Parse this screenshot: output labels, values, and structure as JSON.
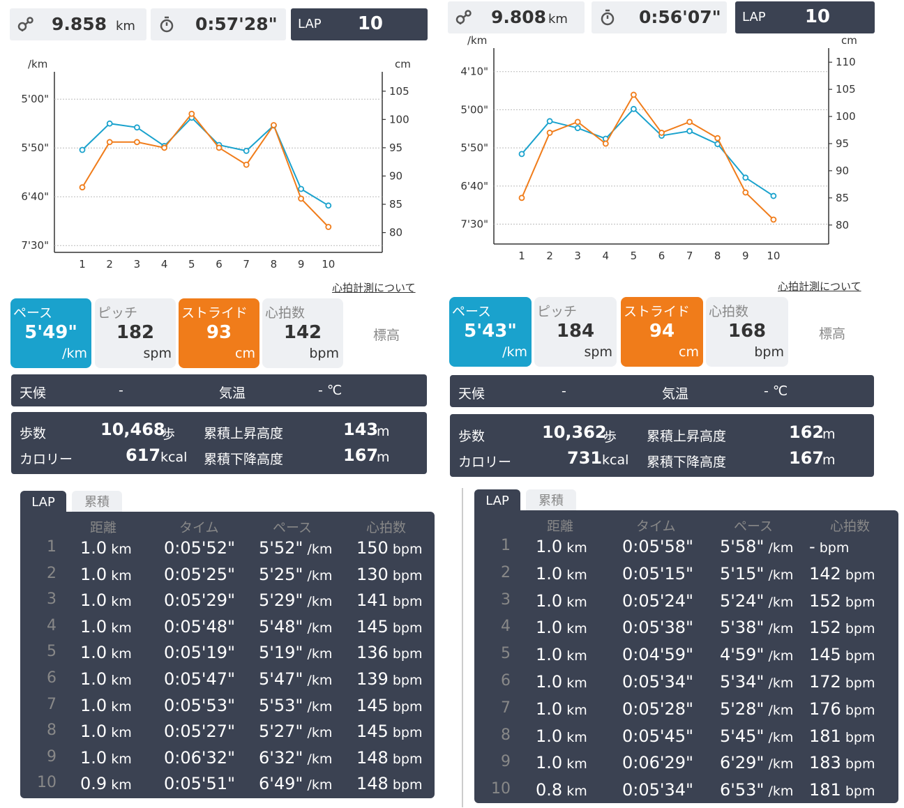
{
  "panels": [
    {
      "distance": "9.858",
      "distance_unit": "km",
      "time": "0:57'28\"",
      "lap_label": "LAP",
      "lap_count": "10",
      "link": "心拍計測について",
      "metrics": {
        "pace": {
          "label": "ペース",
          "value": "5'49\"",
          "unit": "/km"
        },
        "pitch": {
          "label": "ピッチ",
          "value": "182",
          "unit": "spm"
        },
        "stride": {
          "label": "ストライド",
          "value": "93",
          "unit": "cm"
        },
        "hr": {
          "label": "心拍数",
          "value": "142",
          "unit": "bpm"
        },
        "elev": {
          "label": "標高"
        }
      },
      "weather": {
        "label": "天候",
        "value": "-",
        "temp_label": "気温",
        "temp_value": "- ℃"
      },
      "stats": {
        "steps_label": "歩数",
        "steps_value": "10,468",
        "steps_unit": "歩",
        "cal_label": "カロリー",
        "cal_value": "617",
        "cal_unit": "kcal",
        "up_label": "累積上昇高度",
        "up_value": "143",
        "up_unit": "m",
        "down_label": "累積下降高度",
        "down_value": "167",
        "down_unit": "m"
      },
      "tabs": [
        "LAP",
        "累積"
      ],
      "columns": [
        "距離",
        "タイム",
        "ペース",
        "心拍数"
      ],
      "rows": [
        {
          "n": "1",
          "dist": "1.0",
          "time": "0:05'52\"",
          "pace": "5'52\"",
          "hr": "150"
        },
        {
          "n": "2",
          "dist": "1.0",
          "time": "0:05'25\"",
          "pace": "5'25\"",
          "hr": "130"
        },
        {
          "n": "3",
          "dist": "1.0",
          "time": "0:05'29\"",
          "pace": "5'29\"",
          "hr": "141"
        },
        {
          "n": "4",
          "dist": "1.0",
          "time": "0:05'48\"",
          "pace": "5'48\"",
          "hr": "145"
        },
        {
          "n": "5",
          "dist": "1.0",
          "time": "0:05'19\"",
          "pace": "5'19\"",
          "hr": "136"
        },
        {
          "n": "6",
          "dist": "1.0",
          "time": "0:05'47\"",
          "pace": "5'47\"",
          "hr": "139"
        },
        {
          "n": "7",
          "dist": "1.0",
          "time": "0:05'53\"",
          "pace": "5'53\"",
          "hr": "145"
        },
        {
          "n": "8",
          "dist": "1.0",
          "time": "0:05'27\"",
          "pace": "5'27\"",
          "hr": "145"
        },
        {
          "n": "9",
          "dist": "1.0",
          "time": "0:06'32\"",
          "pace": "6'32\"",
          "hr": "148"
        },
        {
          "n": "10",
          "dist": "0.9",
          "time": "0:05'51\"",
          "pace": "6'49\"",
          "hr": "148"
        }
      ],
      "chart_data": {
        "type": "line",
        "x": [
          1,
          2,
          3,
          4,
          5,
          6,
          7,
          8,
          9,
          10
        ],
        "y_left_label": "/km",
        "y_left_ticks": [
          "5'00\"",
          "5'50\"",
          "6'40\"",
          "7'30\""
        ],
        "y_left_tick_seconds": [
          300,
          350,
          400,
          450
        ],
        "y_left_range_seconds": [
          282,
          457
        ],
        "y_right_label": "cm",
        "y_right_ticks": [
          105,
          100,
          95,
          90,
          85,
          80
        ],
        "y_right_range": [
          76.5,
          106.7
        ],
        "series": [
          {
            "color": "#1aa2cd",
            "axis": "left",
            "values_seconds": [
              352,
              325,
              329,
              348,
              319,
              347,
              353,
              327,
              392,
              409
            ]
          },
          {
            "color": "#f07c1a",
            "axis": "right",
            "values": [
              88,
              96,
              96,
              95,
              101,
              95,
              92,
              99,
              86,
              81
            ]
          }
        ]
      }
    },
    {
      "distance": "9.808",
      "distance_unit": "km",
      "time": "0:56'07\"",
      "lap_label": "LAP",
      "lap_count": "10",
      "link": "心拍計測について",
      "metrics": {
        "pace": {
          "label": "ペース",
          "value": "5'43\"",
          "unit": "/km"
        },
        "pitch": {
          "label": "ピッチ",
          "value": "184",
          "unit": "spm"
        },
        "stride": {
          "label": "ストライド",
          "value": "94",
          "unit": "cm"
        },
        "hr": {
          "label": "心拍数",
          "value": "168",
          "unit": "bpm"
        },
        "elev": {
          "label": "標高"
        }
      },
      "weather": {
        "label": "天候",
        "value": "-",
        "temp_label": "気温",
        "temp_value": "- ℃"
      },
      "stats": {
        "steps_label": "歩数",
        "steps_value": "10,362",
        "steps_unit": "歩",
        "cal_label": "カロリー",
        "cal_value": "731",
        "cal_unit": "kcal",
        "up_label": "累積上昇高度",
        "up_value": "162",
        "up_unit": "m",
        "down_label": "累積下降高度",
        "down_value": "167",
        "down_unit": "m"
      },
      "tabs": [
        "LAP",
        "累積"
      ],
      "columns": [
        "距離",
        "タイム",
        "ペース",
        "心拍数"
      ],
      "rows": [
        {
          "n": "1",
          "dist": "1.0",
          "time": "0:05'58\"",
          "pace": "5'58\"",
          "hr": "-"
        },
        {
          "n": "2",
          "dist": "1.0",
          "time": "0:05'15\"",
          "pace": "5'15\"",
          "hr": "142"
        },
        {
          "n": "3",
          "dist": "1.0",
          "time": "0:05'24\"",
          "pace": "5'24\"",
          "hr": "152"
        },
        {
          "n": "4",
          "dist": "1.0",
          "time": "0:05'38\"",
          "pace": "5'38\"",
          "hr": "152"
        },
        {
          "n": "5",
          "dist": "1.0",
          "time": "0:04'59\"",
          "pace": "4'59\"",
          "hr": "145"
        },
        {
          "n": "6",
          "dist": "1.0",
          "time": "0:05'34\"",
          "pace": "5'34\"",
          "hr": "172"
        },
        {
          "n": "7",
          "dist": "1.0",
          "time": "0:05'28\"",
          "pace": "5'28\"",
          "hr": "176"
        },
        {
          "n": "8",
          "dist": "1.0",
          "time": "0:05'45\"",
          "pace": "5'45\"",
          "hr": "181"
        },
        {
          "n": "9",
          "dist": "1.0",
          "time": "0:06'29\"",
          "pace": "6'29\"",
          "hr": "183"
        },
        {
          "n": "10",
          "dist": "0.8",
          "time": "0:05'34\"",
          "pace": "6'53\"",
          "hr": "181"
        }
      ],
      "chart_data": {
        "type": "line",
        "x": [
          1,
          2,
          3,
          4,
          5,
          6,
          7,
          8,
          9,
          10
        ],
        "y_left_label": "/km",
        "y_left_ticks": [
          "4'10\"",
          "5'00\"",
          "5'50\"",
          "6'40\"",
          "7'30\""
        ],
        "y_left_tick_seconds": [
          250,
          300,
          350,
          400,
          450
        ],
        "y_left_range_seconds": [
          232,
          476
        ],
        "y_right_label": "cm",
        "y_right_ticks": [
          110,
          105,
          100,
          95,
          90,
          85,
          80
        ],
        "y_right_range": [
          76.5,
          110.8
        ],
        "series": [
          {
            "color": "#1aa2cd",
            "axis": "left",
            "values_seconds": [
              358,
              315,
              324,
              338,
              299,
              334,
              328,
              345,
              389,
              413
            ]
          },
          {
            "color": "#f07c1a",
            "axis": "right",
            "values": [
              85,
              97,
              99,
              95,
              104,
              97,
              99,
              96,
              86,
              81
            ]
          }
        ]
      }
    }
  ]
}
